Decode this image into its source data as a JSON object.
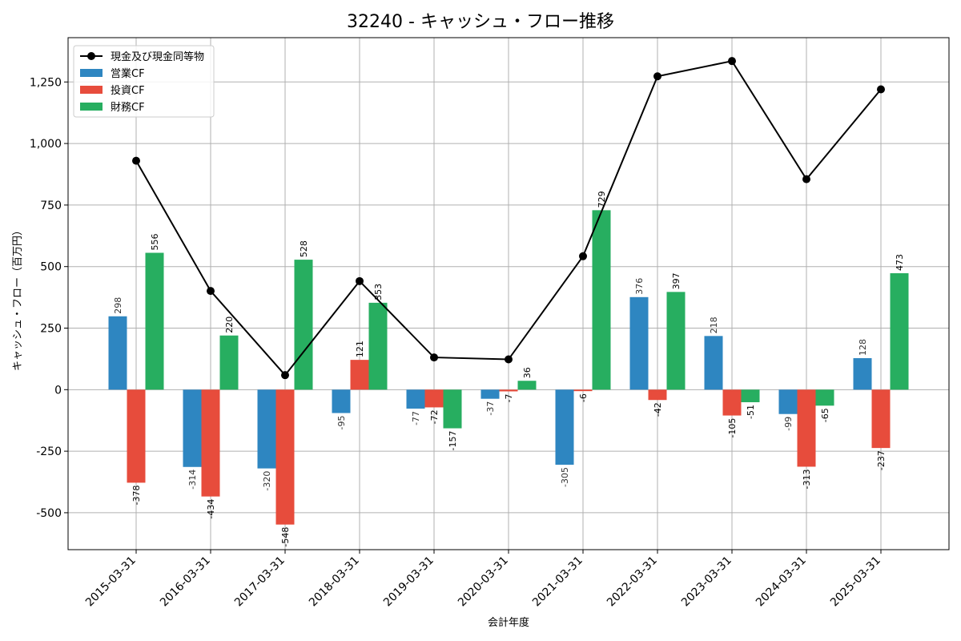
{
  "chart_data": {
    "type": "bar",
    "title": "32240 - キャッシュ・フロー推移",
    "xlabel": "会計年度",
    "ylabel": "キャッシュ・フロー（百万円）",
    "ylim": [
      -650,
      1430
    ],
    "yticks": [
      -500,
      -250,
      0,
      250,
      500,
      750,
      1000,
      1250
    ],
    "ytick_labels": [
      "-500",
      "-250",
      "0",
      "250",
      "500",
      "750",
      "1,000",
      "1,250"
    ],
    "grid": true,
    "legend_position": "top-left",
    "categories": [
      "2015-03-31",
      "2016-03-31",
      "2017-03-31",
      "2018-03-31",
      "2019-03-31",
      "2020-03-31",
      "2021-03-31",
      "2022-03-31",
      "2023-03-31",
      "2024-03-31",
      "2025-03-31"
    ],
    "series": [
      {
        "name": "営業CF",
        "kind": "bar",
        "color": "#2e86c1",
        "values": [
          298,
          -314,
          -320,
          -95,
          -77,
          -37,
          -305,
          376,
          218,
          -99,
          128
        ],
        "labels": [
          "298",
          "-314",
          "-320",
          "-95",
          "-77",
          "-37",
          "-305",
          "376",
          "218",
          "-99",
          "128"
        ]
      },
      {
        "name": "投資CF",
        "kind": "bar",
        "color": "#e74c3c",
        "values": [
          -378,
          -434,
          -548,
          121,
          -72,
          -7,
          -6,
          -42,
          -105,
          -313,
          -237
        ],
        "labels": [
          "-378",
          "-434",
          "-548",
          "121",
          "-72",
          "-7",
          "-6",
          "-42",
          "-105",
          "-313",
          "-237"
        ]
      },
      {
        "name": "財務CF",
        "kind": "bar",
        "color": "#27ae60",
        "values": [
          556,
          220,
          528,
          353,
          -157,
          36,
          729,
          397,
          -51,
          -65,
          473
        ],
        "labels": [
          "556",
          "220",
          "528",
          "353",
          "-157",
          "36",
          "729",
          "397",
          "-51",
          "-65",
          "473"
        ]
      },
      {
        "name": "現金及び現金同等物",
        "kind": "line",
        "color": "#000000",
        "values": [
          930,
          401,
          59,
          441,
          131,
          123,
          542,
          1273,
          1335,
          855,
          1220
        ]
      }
    ]
  }
}
